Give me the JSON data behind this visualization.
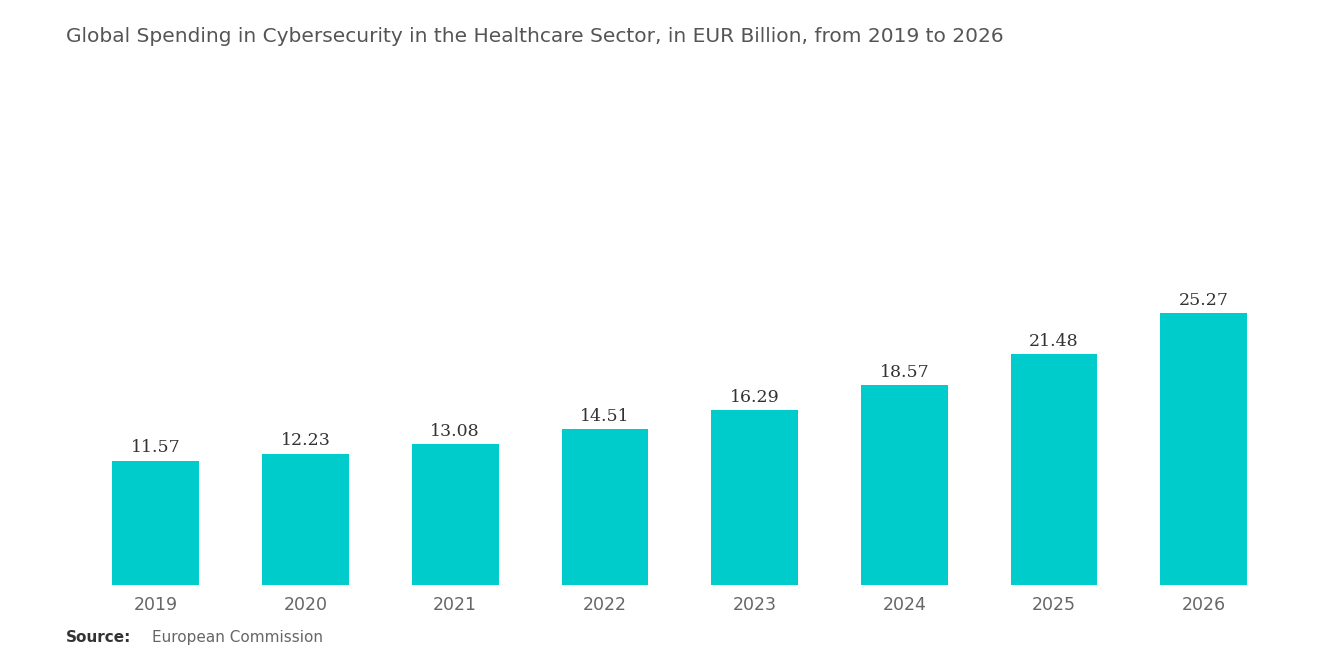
{
  "title": "Global Spending in Cybersecurity in the Healthcare Sector, in EUR Billion, from 2019 to 2026",
  "categories": [
    "2019",
    "2020",
    "2021",
    "2022",
    "2023",
    "2024",
    "2025",
    "2026"
  ],
  "values": [
    11.57,
    12.23,
    13.08,
    14.51,
    16.29,
    18.57,
    21.48,
    25.27
  ],
  "bar_color": "#00CCCC",
  "background_color": "#FFFFFF",
  "title_color": "#555555",
  "label_color": "#333333",
  "tick_color": "#666666",
  "source_bold": "Source:",
  "source_text": "European Commission",
  "title_fontsize": 14.5,
  "label_fontsize": 12.5,
  "tick_fontsize": 12.5,
  "ylim": [
    0,
    42
  ],
  "bar_width": 0.58
}
